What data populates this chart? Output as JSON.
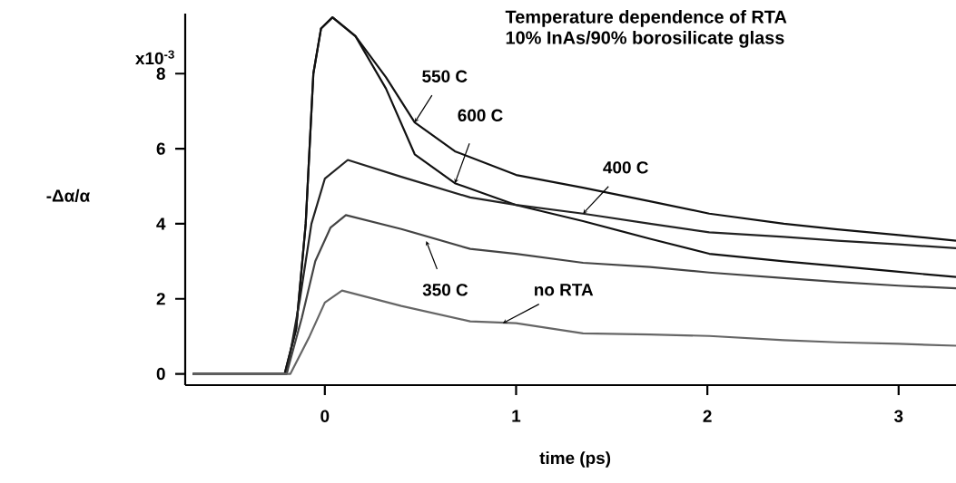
{
  "chart_data": {
    "type": "line",
    "title": "Temperature dependence of RTA",
    "subtitle": "10% InAs/90% borosilicate glass",
    "xlabel": "time (ps)",
    "ylabel": "-Δα/α",
    "xlim": [
      -0.73,
      3.3
    ],
    "ylim": [
      -0.3,
      9.6
    ],
    "xticks": [
      0,
      1,
      2,
      3
    ],
    "yticks": [
      0,
      2,
      4,
      6,
      8
    ],
    "grid": false,
    "marker": "none",
    "line_style": "solid",
    "series": [
      {
        "color": "#111111",
        "x": [
          -0.69,
          -0.4,
          -0.21,
          -0.15,
          -0.1,
          -0.06,
          -0.02,
          0.04,
          0.16,
          0.32,
          0.47,
          0.68,
          1.0,
          1.35,
          1.7,
          2.01,
          2.4,
          2.68,
          3.0,
          3.3
        ],
        "values": [
          0,
          0,
          0,
          1.2,
          4,
          8,
          9.2,
          9.5,
          9.0,
          7.9,
          6.7,
          5.93,
          5.3,
          4.96,
          4.6,
          4.27,
          4.0,
          3.85,
          3.7,
          3.55
        ]
      },
      {
        "color": "#111111",
        "x": [
          -0.69,
          -0.4,
          -0.21,
          -0.15,
          -0.1,
          -0.06,
          -0.02,
          0.04,
          0.16,
          0.32,
          0.47,
          0.68,
          1.0,
          1.35,
          1.7,
          2.01,
          2.4,
          2.68,
          3.0,
          3.3
        ],
        "values": [
          0,
          0,
          0,
          1.2,
          4,
          8,
          9.2,
          9.5,
          9.0,
          7.6,
          5.85,
          5.08,
          4.5,
          4.07,
          3.6,
          3.2,
          3.0,
          2.87,
          2.72,
          2.58
        ]
      },
      {
        "color": "#222222",
        "x": [
          -0.69,
          -0.4,
          -0.2,
          -0.13,
          -0.07,
          0.0,
          0.12,
          0.4,
          0.76,
          1.0,
          1.35,
          1.7,
          2.01,
          2.4,
          2.68,
          3.0,
          3.3
        ],
        "values": [
          0,
          0,
          0,
          2,
          4,
          5.2,
          5.7,
          5.25,
          4.7,
          4.5,
          4.27,
          4.0,
          3.77,
          3.65,
          3.55,
          3.45,
          3.35
        ]
      },
      {
        "color": "#444444",
        "x": [
          -0.69,
          -0.4,
          -0.2,
          -0.12,
          -0.05,
          0.03,
          0.11,
          0.4,
          0.76,
          1.0,
          1.35,
          1.7,
          2.01,
          2.4,
          2.68,
          3.0,
          3.3
        ],
        "values": [
          0,
          0,
          0,
          1.5,
          3,
          3.9,
          4.23,
          3.86,
          3.33,
          3.2,
          2.96,
          2.85,
          2.7,
          2.55,
          2.45,
          2.35,
          2.28
        ]
      },
      {
        "color": "#666666",
        "x": [
          -0.69,
          -0.4,
          -0.18,
          -0.08,
          0.0,
          0.09,
          0.4,
          0.76,
          1.0,
          1.35,
          1.7,
          2.01,
          2.4,
          2.68,
          3.0,
          3.3
        ],
        "values": [
          0,
          0,
          0,
          1,
          1.9,
          2.22,
          1.81,
          1.4,
          1.35,
          1.08,
          1.05,
          1.01,
          0.9,
          0.84,
          0.8,
          0.75
        ]
      }
    ],
    "annotations": [
      {
        "text": "550 C",
        "x": 0.47,
        "y": 6.7
      },
      {
        "text": "600 C",
        "x": 0.68,
        "y": 5.08
      },
      {
        "text": "400 C",
        "x": 1.35,
        "y": 4.27
      },
      {
        "text": "350 C",
        "x": 0.53,
        "y": 3.54
      },
      {
        "text": "no RTA",
        "x": 0.93,
        "y": 1.35
      },
      "x10$^{-3}$"
    ]
  }
}
